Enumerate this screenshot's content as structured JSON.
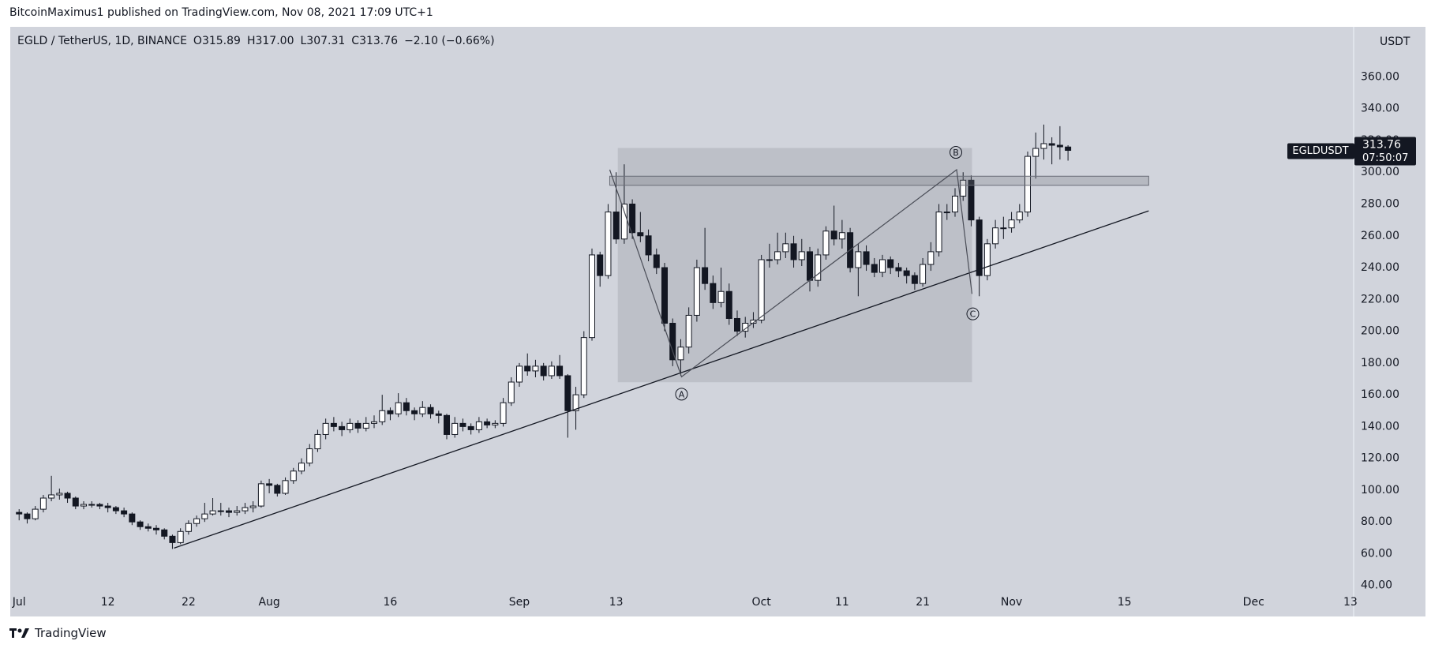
{
  "header": "BitcoinMaximus1 published on TradingView.com, Nov 08, 2021 17:09 UTC+1",
  "footer": "TradingView",
  "chart_data": {
    "type": "candlestick",
    "symbol": "EGLD / TetherUS, 1D, BINANCE",
    "ohlc_keys": [
      "O",
      "H",
      "L",
      "C"
    ],
    "ohlc_labels": [
      "315.89",
      "317.00",
      "307.31",
      "313.76"
    ],
    "change_label": "−2.10 (−0.66%)",
    "price_tag": {
      "name": "EGLDUSDT",
      "price": "313.76",
      "countdown": "07:50:07"
    },
    "y_unit": "USDT",
    "grid": false,
    "xlim": [
      -1,
      165.5
    ],
    "ylim": [
      21,
      391
    ],
    "xticks": [
      {
        "value": 0,
        "label": "Jul"
      },
      {
        "value": 11,
        "label": "12"
      },
      {
        "value": 21,
        "label": "22"
      },
      {
        "value": 31,
        "label": "Aug"
      },
      {
        "value": 46,
        "label": "16"
      },
      {
        "value": 62,
        "label": "Sep"
      },
      {
        "value": 74,
        "label": "13"
      },
      {
        "value": 92,
        "label": "Oct"
      },
      {
        "value": 102,
        "label": "11"
      },
      {
        "value": 112,
        "label": "21"
      },
      {
        "value": 123,
        "label": "Nov"
      },
      {
        "value": 137,
        "label": "15"
      },
      {
        "value": 153,
        "label": "Dec"
      },
      {
        "value": 165,
        "label": "13"
      }
    ],
    "yticks": [
      {
        "value": 40,
        "label": "40.00"
      },
      {
        "value": 60,
        "label": "60.00"
      },
      {
        "value": 80,
        "label": "80.00"
      },
      {
        "value": 100,
        "label": "100.00"
      },
      {
        "value": 120,
        "label": "120.00"
      },
      {
        "value": 140,
        "label": "140.00"
      },
      {
        "value": 160,
        "label": "160.00"
      },
      {
        "value": 180,
        "label": "180.00"
      },
      {
        "value": 200,
        "label": "200.00"
      },
      {
        "value": 220,
        "label": "220.00"
      },
      {
        "value": 240,
        "label": "240.00"
      },
      {
        "value": 260,
        "label": "260.00"
      },
      {
        "value": 280,
        "label": "280.00"
      },
      {
        "value": 300,
        "label": "300.00"
      },
      {
        "value": 320,
        "label": "320.00"
      },
      {
        "value": 340,
        "label": "340.00"
      },
      {
        "value": 360,
        "label": "360.00"
      }
    ],
    "up_color": "#ffffff",
    "down_color": "#131722",
    "ohlc": [
      [
        86,
        88,
        81,
        85
      ],
      [
        85,
        86,
        79,
        82
      ],
      [
        82,
        90,
        81,
        88
      ],
      [
        88,
        97,
        86,
        95
      ],
      [
        95,
        109,
        93,
        97
      ],
      [
        97,
        101,
        94,
        98
      ],
      [
        98,
        99,
        92,
        95
      ],
      [
        95,
        96,
        88,
        90
      ],
      [
        90,
        93,
        88,
        91
      ],
      [
        91,
        93,
        89,
        91
      ],
      [
        91,
        92,
        88,
        90
      ],
      [
        90,
        92,
        86,
        89
      ],
      [
        89,
        90,
        85,
        87
      ],
      [
        87,
        89,
        83,
        85
      ],
      [
        85,
        86,
        78,
        80
      ],
      [
        80,
        81,
        75,
        77
      ],
      [
        77,
        79,
        74,
        76
      ],
      [
        76,
        78,
        72,
        75
      ],
      [
        75,
        76,
        69,
        71
      ],
      [
        71,
        72,
        63,
        67
      ],
      [
        67,
        76,
        66,
        74
      ],
      [
        74,
        81,
        72,
        79
      ],
      [
        79,
        84,
        77,
        82
      ],
      [
        82,
        92,
        80,
        85
      ],
      [
        85,
        95,
        84,
        87
      ],
      [
        87,
        92,
        84,
        87
      ],
      [
        87,
        89,
        83,
        86
      ],
      [
        86,
        90,
        84,
        87
      ],
      [
        87,
        92,
        85,
        89
      ],
      [
        89,
        93,
        86,
        90
      ],
      [
        90,
        106,
        89,
        104
      ],
      [
        104,
        107,
        98,
        103
      ],
      [
        103,
        104,
        96,
        98
      ],
      [
        98,
        108,
        97,
        106
      ],
      [
        106,
        114,
        104,
        112
      ],
      [
        112,
        120,
        110,
        117
      ],
      [
        117,
        129,
        115,
        126
      ],
      [
        126,
        138,
        124,
        135
      ],
      [
        135,
        145,
        132,
        142
      ],
      [
        142,
        146,
        137,
        140
      ],
      [
        140,
        143,
        134,
        138
      ],
      [
        138,
        145,
        136,
        142
      ],
      [
        142,
        144,
        136,
        139
      ],
      [
        139,
        146,
        137,
        142
      ],
      [
        142,
        147,
        139,
        143
      ],
      [
        143,
        160,
        141,
        150
      ],
      [
        150,
        152,
        144,
        148
      ],
      [
        148,
        161,
        146,
        155
      ],
      [
        155,
        158,
        147,
        150
      ],
      [
        150,
        152,
        144,
        148
      ],
      [
        148,
        156,
        146,
        152
      ],
      [
        152,
        154,
        145,
        148
      ],
      [
        148,
        150,
        142,
        147
      ],
      [
        147,
        148,
        132,
        135
      ],
      [
        135,
        146,
        133,
        142
      ],
      [
        142,
        145,
        137,
        140
      ],
      [
        140,
        142,
        135,
        138
      ],
      [
        138,
        146,
        136,
        143
      ],
      [
        143,
        145,
        139,
        141
      ],
      [
        141,
        144,
        139,
        142
      ],
      [
        142,
        158,
        140,
        155
      ],
      [
        155,
        171,
        153,
        168
      ],
      [
        168,
        180,
        165,
        178
      ],
      [
        178,
        186,
        172,
        175
      ],
      [
        175,
        182,
        171,
        178
      ],
      [
        178,
        180,
        169,
        172
      ],
      [
        172,
        181,
        170,
        178
      ],
      [
        178,
        185,
        170,
        172
      ],
      [
        172,
        173,
        133,
        150
      ],
      [
        150,
        165,
        138,
        160
      ],
      [
        160,
        200,
        158,
        196
      ],
      [
        196,
        252,
        194,
        248
      ],
      [
        248,
        250,
        228,
        235
      ],
      [
        235,
        280,
        233,
        275
      ],
      [
        275,
        300,
        255,
        258
      ],
      [
        258,
        305,
        255,
        280
      ],
      [
        280,
        283,
        258,
        262
      ],
      [
        262,
        275,
        256,
        260
      ],
      [
        260,
        264,
        244,
        248
      ],
      [
        248,
        252,
        236,
        240
      ],
      [
        240,
        243,
        200,
        205
      ],
      [
        205,
        208,
        178,
        182
      ],
      [
        182,
        195,
        172,
        190
      ],
      [
        190,
        215,
        186,
        210
      ],
      [
        210,
        245,
        206,
        240
      ],
      [
        240,
        265,
        226,
        230
      ],
      [
        230,
        235,
        214,
        218
      ],
      [
        218,
        240,
        215,
        225
      ],
      [
        225,
        230,
        204,
        208
      ],
      [
        208,
        213,
        197,
        200
      ],
      [
        200,
        209,
        196,
        205
      ],
      [
        205,
        212,
        202,
        207
      ],
      [
        207,
        248,
        205,
        245
      ],
      [
        245,
        255,
        240,
        245
      ],
      [
        245,
        262,
        242,
        250
      ],
      [
        250,
        262,
        246,
        255
      ],
      [
        255,
        260,
        240,
        245
      ],
      [
        245,
        258,
        241,
        250
      ],
      [
        250,
        253,
        225,
        232
      ],
      [
        232,
        252,
        228,
        248
      ],
      [
        248,
        266,
        245,
        263
      ],
      [
        263,
        279,
        254,
        258
      ],
      [
        258,
        270,
        252,
        262
      ],
      [
        262,
        265,
        237,
        240
      ],
      [
        240,
        255,
        222,
        250
      ],
      [
        250,
        254,
        238,
        242
      ],
      [
        242,
        246,
        234,
        237
      ],
      [
        237,
        248,
        234,
        245
      ],
      [
        245,
        247,
        236,
        240
      ],
      [
        240,
        243,
        234,
        238
      ],
      [
        238,
        240,
        230,
        235
      ],
      [
        235,
        237,
        226,
        230
      ],
      [
        230,
        246,
        228,
        242
      ],
      [
        242,
        256,
        238,
        250
      ],
      [
        250,
        280,
        247,
        275
      ],
      [
        275,
        280,
        270,
        275
      ],
      [
        275,
        290,
        272,
        285
      ],
      [
        285,
        300,
        282,
        295
      ],
      [
        295,
        298,
        266,
        270
      ],
      [
        270,
        272,
        222,
        235
      ],
      [
        235,
        258,
        232,
        255
      ],
      [
        255,
        270,
        252,
        265
      ],
      [
        265,
        272,
        258,
        265
      ],
      [
        265,
        275,
        262,
        270
      ],
      [
        270,
        280,
        268,
        275
      ],
      [
        275,
        313,
        272,
        310
      ],
      [
        310,
        325,
        296,
        315
      ],
      [
        315,
        330,
        308,
        318
      ],
      [
        318,
        322,
        305,
        317
      ],
      [
        317,
        329,
        308,
        316
      ],
      [
        315.89,
        317,
        307.31,
        313.76
      ]
    ],
    "drawings": {
      "box": {
        "x": [
          74.2,
          118.1
        ],
        "y": [
          167.9,
          315.3
        ]
      },
      "resistance": {
        "x": [
          73.2,
          140
        ],
        "y": [
          291.8,
          297.5
        ]
      },
      "trendline": [
        [
          19.2,
          63.5
        ],
        [
          140,
          275.7
        ]
      ],
      "zigzag": [
        [
          73.2,
          301.6
        ],
        [
          82.1,
          171.3
        ],
        [
          116.2,
          301.6
        ],
        [
          118.1,
          223.5
        ]
      ]
    },
    "annotations": [
      {
        "text": "A",
        "x": 82.1,
        "y": 160.4
      },
      {
        "text": "B",
        "x": 116.1,
        "y": 312.5
      },
      {
        "text": "C",
        "x": 118.2,
        "y": 210.9
      }
    ]
  }
}
